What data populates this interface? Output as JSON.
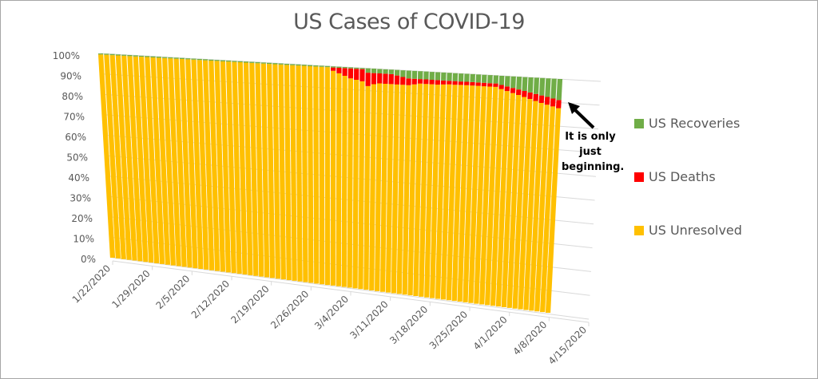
{
  "chart_data": {
    "type": "bar",
    "stacked": "percent",
    "title": "US Cases of COVID-19",
    "xlabel": "",
    "ylabel": "",
    "ylim": [
      0,
      1
    ],
    "y_ticks": [
      "0%",
      "10%",
      "20%",
      "30%",
      "40%",
      "50%",
      "60%",
      "70%",
      "80%",
      "90%",
      "100%"
    ],
    "x_tick_labels": [
      "1/22/2020",
      "1/29/2020",
      "2/5/2020",
      "2/12/2020",
      "2/19/2020",
      "2/26/2020",
      "3/4/2020",
      "3/11/2020",
      "3/18/2020",
      "3/25/2020",
      "4/1/2020",
      "4/8/2020",
      "4/15/2020"
    ],
    "x_start": "1/22/2020",
    "x_end": "4/10/2020",
    "legend_position": "right",
    "grid": true,
    "series": [
      {
        "name": "US Recoveries",
        "color": "#70ad47",
        "values": [
          0.005,
          0.005,
          0.005,
          0.005,
          0.005,
          0.005,
          0.005,
          0.005,
          0.005,
          0.005,
          0.005,
          0.005,
          0.005,
          0.005,
          0.005,
          0.005,
          0.005,
          0.005,
          0.005,
          0.005,
          0.005,
          0.005,
          0.005,
          0.005,
          0.005,
          0.005,
          0.005,
          0.005,
          0.005,
          0.005,
          0.005,
          0.005,
          0.005,
          0.005,
          0.005,
          0.005,
          0.005,
          0.005,
          0.005,
          0.005,
          0.005,
          0.005,
          0.005,
          0.005,
          0.005,
          0.005,
          0.02,
          0.02,
          0.02,
          0.02,
          0.02,
          0.025,
          0.03,
          0.035,
          0.035,
          0.035,
          0.035,
          0.035,
          0.035,
          0.035,
          0.035,
          0.035,
          0.035,
          0.035,
          0.035,
          0.035,
          0.035,
          0.035,
          0.035,
          0.04,
          0.045,
          0.05,
          0.055,
          0.06,
          0.065,
          0.07,
          0.075,
          0.08,
          0.085,
          0.09
        ]
      },
      {
        "name": "US Deaths",
        "color": "#ff0000",
        "values": [
          0,
          0,
          0,
          0,
          0,
          0,
          0,
          0,
          0,
          0,
          0,
          0,
          0,
          0,
          0,
          0,
          0,
          0,
          0,
          0,
          0,
          0,
          0,
          0,
          0,
          0,
          0,
          0,
          0,
          0,
          0,
          0,
          0,
          0,
          0,
          0,
          0,
          0,
          0,
          0,
          0.015,
          0.025,
          0.035,
          0.045,
          0.05,
          0.055,
          0.06,
          0.05,
          0.045,
          0.045,
          0.045,
          0.04,
          0.035,
          0.03,
          0.025,
          0.02,
          0.02,
          0.02,
          0.02,
          0.018,
          0.016,
          0.016,
          0.015,
          0.015,
          0.015,
          0.015,
          0.015,
          0.015,
          0.015,
          0.018,
          0.02,
          0.022,
          0.024,
          0.026,
          0.028,
          0.03,
          0.032,
          0.033,
          0.034,
          0.035
        ]
      },
      {
        "name": "US Unresolved",
        "color": "#ffc000",
        "values": [
          0.995,
          0.995,
          0.995,
          0.995,
          0.995,
          0.995,
          0.995,
          0.995,
          0.995,
          0.995,
          0.995,
          0.995,
          0.995,
          0.995,
          0.995,
          0.995,
          0.995,
          0.995,
          0.995,
          0.995,
          0.995,
          0.995,
          0.995,
          0.995,
          0.995,
          0.995,
          0.995,
          0.995,
          0.995,
          0.995,
          0.995,
          0.995,
          0.995,
          0.995,
          0.995,
          0.995,
          0.995,
          0.995,
          0.995,
          0.995,
          0.98,
          0.97,
          0.96,
          0.95,
          0.945,
          0.94,
          0.92,
          0.93,
          0.935,
          0.935,
          0.935,
          0.935,
          0.935,
          0.935,
          0.94,
          0.945,
          0.945,
          0.945,
          0.945,
          0.947,
          0.949,
          0.949,
          0.95,
          0.95,
          0.95,
          0.95,
          0.95,
          0.95,
          0.95,
          0.942,
          0.935,
          0.928,
          0.921,
          0.914,
          0.907,
          0.9,
          0.893,
          0.887,
          0.881,
          0.875
        ]
      }
    ],
    "annotations": [
      {
        "text": "It is only just beginning.",
        "points_to": "last bar (4/10/2020)"
      }
    ]
  },
  "title": "US Cases of COVID-19",
  "legend": [
    {
      "label": "US Recoveries",
      "color": "#70ad47"
    },
    {
      "label": "US Deaths",
      "color": "#ff0000"
    },
    {
      "label": "US Unresolved",
      "color": "#ffc000"
    }
  ],
  "annotation": {
    "text": "It is only just beginning."
  }
}
